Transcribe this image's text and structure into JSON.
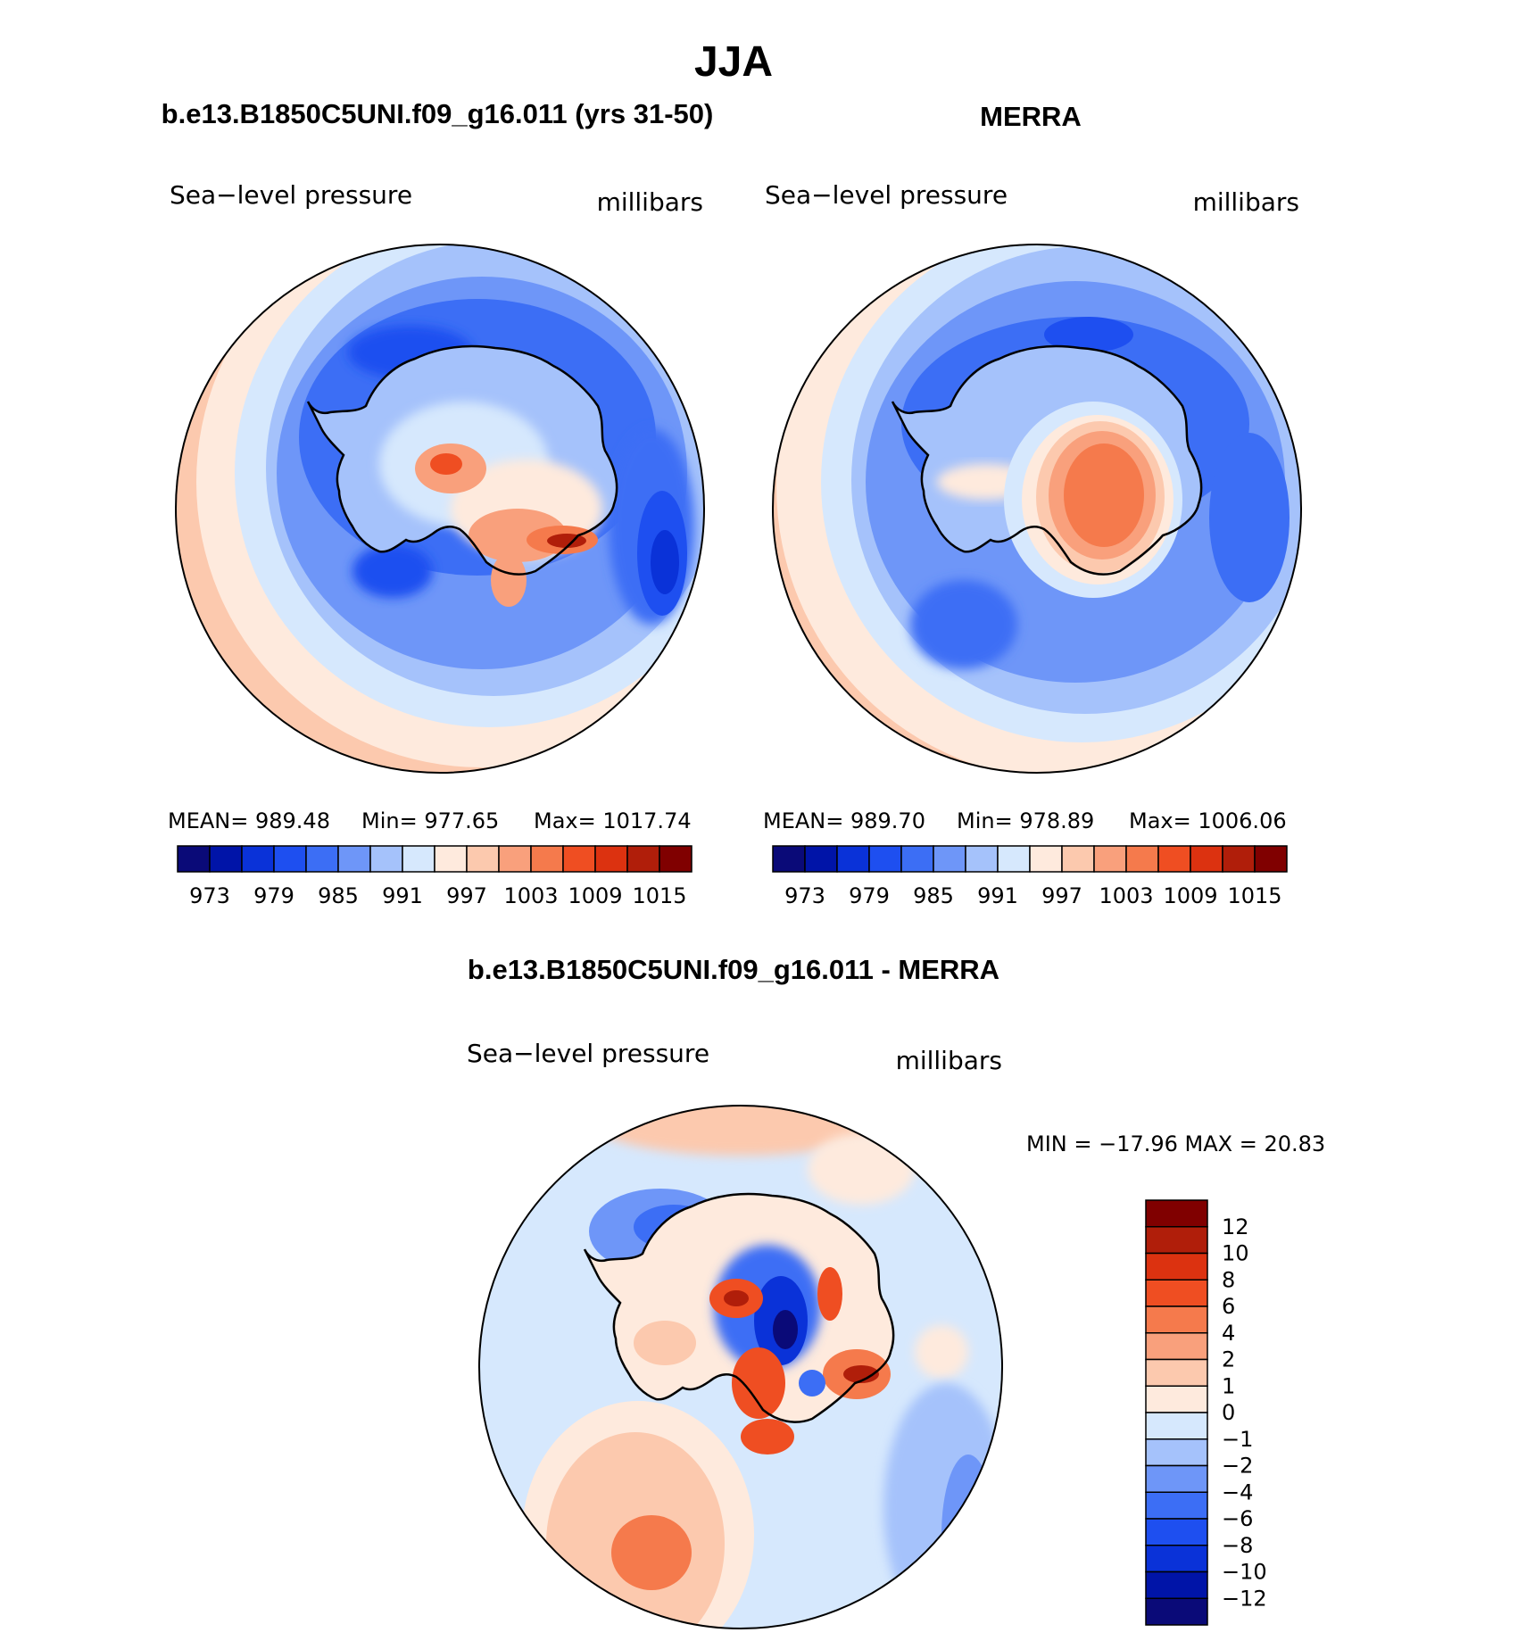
{
  "figure": {
    "season": "JJA",
    "panels": {
      "model": {
        "heading": "b.e13.B1850C5UNI.f09_g16.011 (yrs 31-50)",
        "left_label": "Sea−level pressure",
        "right_label": "millibars",
        "stats": {
          "mean": "MEAN=  989.48",
          "min": "Min=  977.65",
          "max": "Max=  1017.74"
        }
      },
      "obs": {
        "heading": "MERRA",
        "left_label": "Sea−level pressure",
        "right_label": "millibars",
        "stats": {
          "mean": "MEAN=  989.70",
          "min": "Min=  978.89",
          "max": "Max=  1006.06"
        }
      },
      "diff": {
        "heading": "b.e13.B1850C5UNI.f09_g16.011 - MERRA",
        "left_label": "Sea−level pressure",
        "right_label": "millibars",
        "minmax": "MIN  =  −17.96  MAX  =    20.83"
      }
    }
  },
  "chart_data": [
    {
      "type": "heatmap",
      "projection": "south-polar-stereographic",
      "title": "b.e13.B1850C5UNI.f09_g16.011 (yrs 31-50)",
      "variable": "Sea-level pressure",
      "units": "millibars",
      "stats": {
        "mean": 989.48,
        "min": 977.65,
        "max": 1017.74
      },
      "contour_levels": [
        973,
        976,
        979,
        982,
        985,
        988,
        991,
        994,
        997,
        1000,
        1003,
        1006,
        1009,
        1012,
        1015
      ],
      "colorbar_ticks": [
        "973",
        "979",
        "985",
        "991",
        "997",
        "1003",
        "1009",
        "1015"
      ],
      "colorbar_colors": [
        "#0a0a78",
        "#0014a8",
        "#0a32d8",
        "#1e4ff0",
        "#3c6ef5",
        "#6e96f8",
        "#a5c2fb",
        "#d6e8fd",
        "#feeadd",
        "#fcc9ae",
        "#f9a07c",
        "#f57a4c",
        "#ef4e22",
        "#dc3210",
        "#b01e0a",
        "#800000"
      ]
    },
    {
      "type": "heatmap",
      "projection": "south-polar-stereographic",
      "title": "MERRA",
      "variable": "Sea-level pressure",
      "units": "millibars",
      "stats": {
        "mean": 989.7,
        "min": 978.89,
        "max": 1006.06
      },
      "contour_levels": [
        973,
        976,
        979,
        982,
        985,
        988,
        991,
        994,
        997,
        1000,
        1003,
        1006,
        1009,
        1012,
        1015
      ],
      "colorbar_ticks": [
        "973",
        "979",
        "985",
        "991",
        "997",
        "1003",
        "1009",
        "1015"
      ],
      "colorbar_colors": [
        "#0a0a78",
        "#0014a8",
        "#0a32d8",
        "#1e4ff0",
        "#3c6ef5",
        "#6e96f8",
        "#a5c2fb",
        "#d6e8fd",
        "#feeadd",
        "#fcc9ae",
        "#f9a07c",
        "#f57a4c",
        "#ef4e22",
        "#dc3210",
        "#b01e0a",
        "#800000"
      ]
    },
    {
      "type": "heatmap",
      "projection": "south-polar-stereographic",
      "title": "b.e13.B1850C5UNI.f09_g16.011 - MERRA",
      "variable": "Sea-level pressure",
      "units": "millibars",
      "stats": {
        "min": -17.96,
        "max": 20.83
      },
      "contour_levels": [
        -12,
        -10,
        -8,
        -6,
        -4,
        -2,
        -1,
        0,
        1,
        2,
        4,
        6,
        8,
        10,
        12
      ],
      "colorbar_ticks": [
        "12",
        "10",
        "8",
        "6",
        "4",
        "2",
        "1",
        "0",
        "−1",
        "−2",
        "−4",
        "−6",
        "−8",
        "−10",
        "−12"
      ],
      "colorbar_colors_top_to_bottom": [
        "#800000",
        "#b01e0a",
        "#dc3210",
        "#ef4e22",
        "#f57a4c",
        "#f9a07c",
        "#fcc9ae",
        "#feeadd",
        "#d6e8fd",
        "#a5c2fb",
        "#6e96f8",
        "#3c6ef5",
        "#1e4ff0",
        "#0a32d8",
        "#0014a8",
        "#0a0a78"
      ]
    }
  ]
}
